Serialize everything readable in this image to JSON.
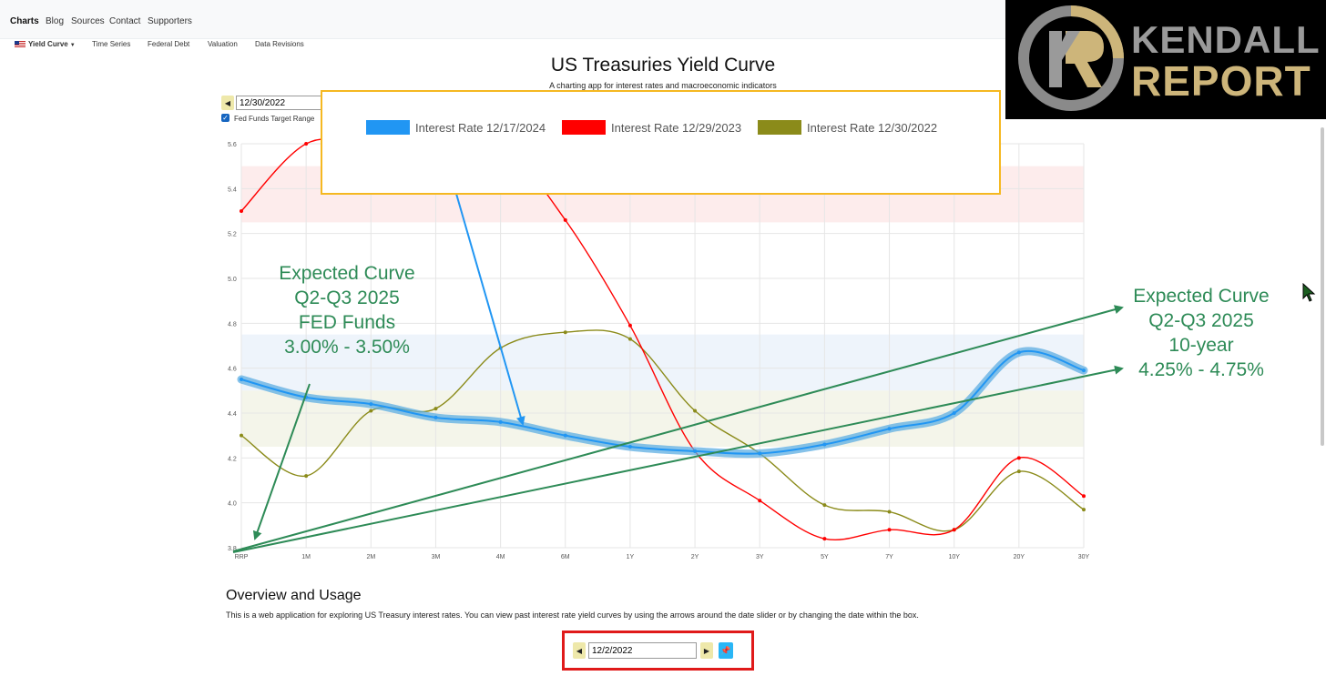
{
  "nav": {
    "brand": "Charts",
    "links": [
      "Blog",
      "Sources",
      "Contact",
      "Supporters"
    ]
  },
  "subnav": {
    "active": "Yield Curve",
    "items": [
      "Time Series",
      "Federal Debt",
      "Valuation",
      "Data Revisions"
    ]
  },
  "header": {
    "title": "US Treasuries Yield Curve",
    "subtitle": "A charting app for interest rates and macroeconomic indicators"
  },
  "controls": {
    "date_value": "12/30/2022",
    "fed_funds_label": "Fed Funds Target Range",
    "fed_funds_checked": true
  },
  "logo": {
    "line1": "KENDALL",
    "line2": "REPORT",
    "mark": "KR"
  },
  "annotations": {
    "left": [
      "Expected Curve",
      "Q2-Q3 2025",
      "FED Funds",
      "3.00% - 3.50%"
    ],
    "right": [
      "Expected Curve",
      "Q2-Q3 2025",
      "10-year",
      "4.25% - 4.75%"
    ]
  },
  "overview": {
    "title": "Overview and Usage",
    "text": "This is a web application for exploring US Treasury interest rates. You can view past interest rate yield curves by using the arrows around the date slider or by changing the date within the box."
  },
  "bottom_controls": {
    "date_value": "12/2/2022"
  },
  "colors": {
    "series_2024": "#2196f3",
    "series_2023": "#ff0000",
    "series_2022": "#8b8b1a",
    "annotation": "#2e8b57",
    "legend_border": "#f5b821",
    "highlight_border": "#e01a1a"
  },
  "chart_data": {
    "type": "line",
    "categories": [
      "RRP",
      "1M",
      "2M",
      "3M",
      "4M",
      "6M",
      "1Y",
      "2Y",
      "3Y",
      "5Y",
      "7Y",
      "10Y",
      "20Y",
      "30Y"
    ],
    "ylim": [
      3.8,
      5.6
    ],
    "yticks": [
      "5.6",
      "5.4",
      "5.2",
      "5.0",
      "4.8",
      "4.6",
      "4.4",
      "4.2",
      "4.0",
      "3.8"
    ],
    "grid": true,
    "legend": "top",
    "series": [
      {
        "name": "Interest Rate 12/17/2024",
        "color": "#2196f3",
        "values": [
          4.55,
          4.47,
          4.44,
          4.38,
          4.36,
          4.3,
          4.25,
          4.23,
          4.22,
          4.26,
          4.33,
          4.4,
          4.67,
          4.59
        ]
      },
      {
        "name": "Interest Rate 12/29/2023",
        "color": "#ff0000",
        "values": [
          5.3,
          5.6,
          5.6,
          5.6,
          5.6,
          5.26,
          4.79,
          4.23,
          4.01,
          3.84,
          3.88,
          3.88,
          4.2,
          4.03
        ]
      },
      {
        "name": "Interest Rate 12/30/2022",
        "color": "#8b8b1a",
        "values": [
          4.3,
          4.12,
          4.41,
          4.42,
          4.69,
          4.76,
          4.73,
          4.41,
          4.22,
          3.99,
          3.96,
          3.88,
          4.14,
          3.97
        ]
      }
    ],
    "bands": [
      {
        "from": 5.25,
        "to": 5.5,
        "color": "#fdecec"
      },
      {
        "from": 4.5,
        "to": 4.75,
        "color": "#eef4fb"
      },
      {
        "from": 4.25,
        "to": 4.5,
        "color": "#f4f5ea"
      }
    ]
  }
}
